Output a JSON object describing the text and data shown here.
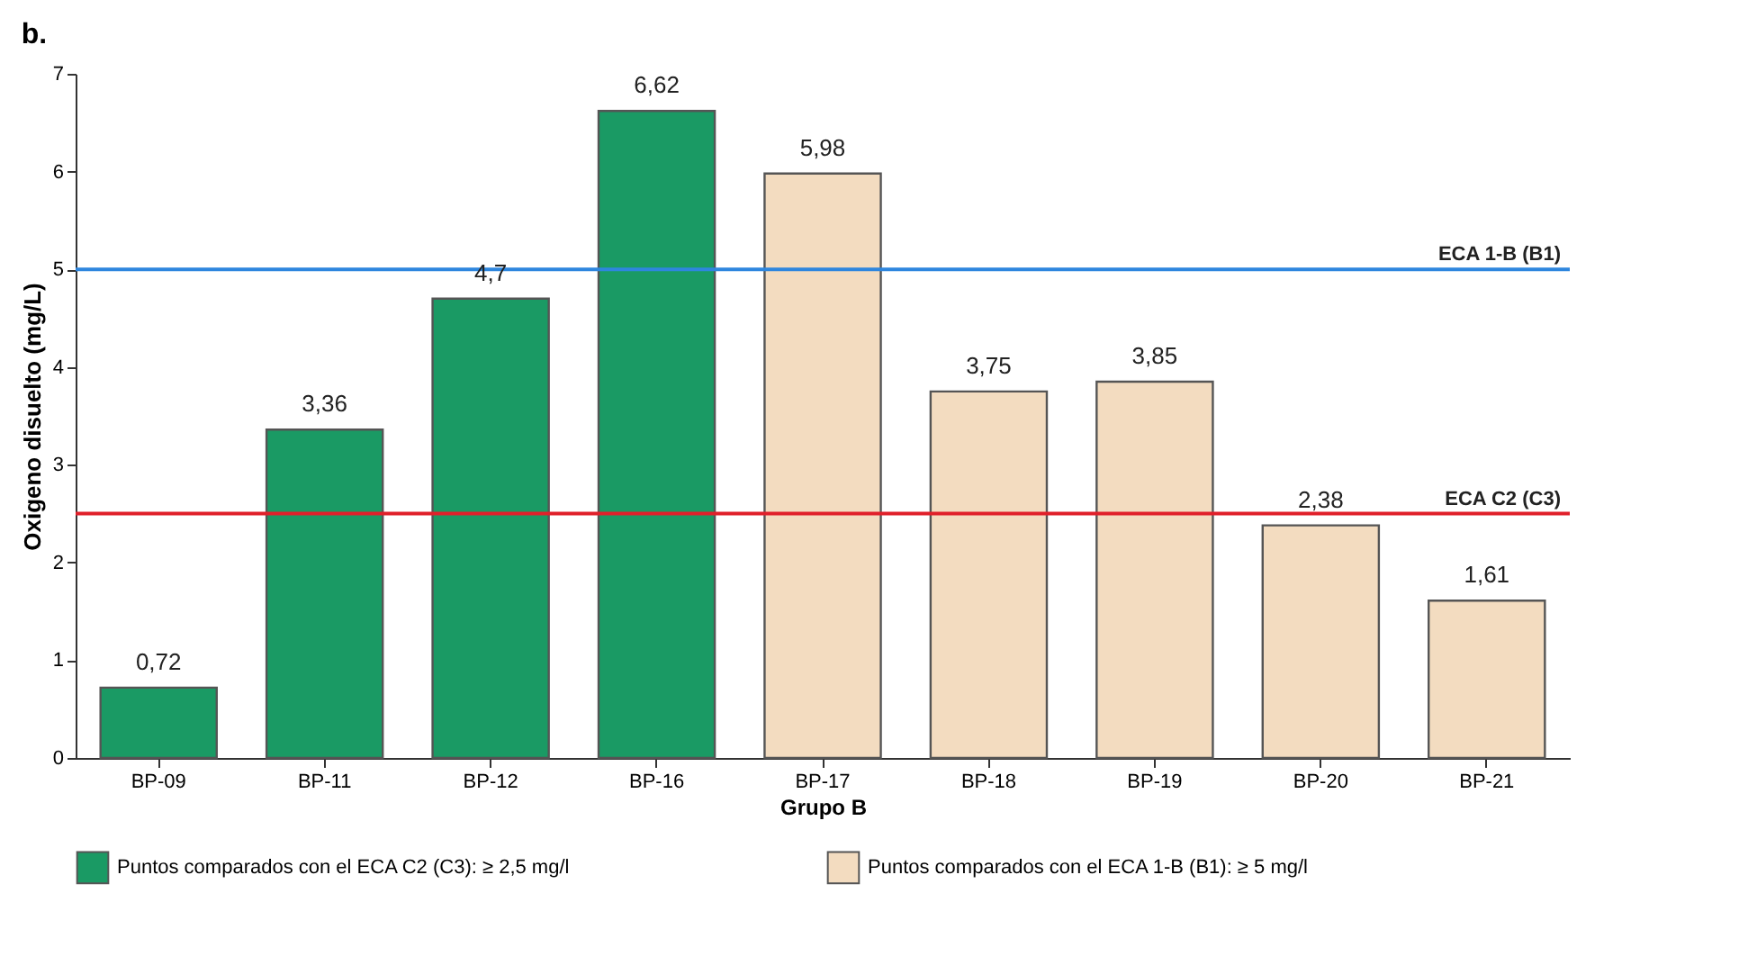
{
  "chart_data": {
    "type": "bar",
    "title": "b.",
    "xlabel": "Grupo B",
    "ylabel": "Oxigeno disuelto (mg/L)",
    "categories": [
      "BP-09",
      "BP-11",
      "BP-12",
      "BP-16",
      "BP-17",
      "BP-18",
      "BP-19",
      "BP-20",
      "BP-21"
    ],
    "series": [
      {
        "name": "Puntos comparados con el ECA C2 (C3): ≥ 2,5 mg/l",
        "color": "#1a9a64",
        "values": [
          0.72,
          3.36,
          4.7,
          6.62,
          null,
          null,
          null,
          null,
          null
        ],
        "value_labels": [
          "0,72",
          "3,36",
          "4,7",
          "6,62",
          null,
          null,
          null,
          null,
          null
        ]
      },
      {
        "name": "Puntos comparados con el ECA 1-B (B1): ≥ 5 mg/l",
        "color": "#f3dcc0",
        "values": [
          null,
          null,
          null,
          null,
          5.98,
          3.75,
          3.85,
          2.38,
          1.61
        ],
        "value_labels": [
          null,
          null,
          null,
          null,
          "5,98",
          "3,75",
          "3,85",
          "2,38",
          "1,61"
        ]
      }
    ],
    "ylim": [
      0,
      7
    ],
    "yticks": [
      0,
      1,
      2,
      3,
      4,
      5,
      6,
      7
    ],
    "ref_lines": [
      {
        "axis": "y",
        "value": 2.5,
        "label": "ECA C2 (C3)",
        "color": "#e0202a"
      },
      {
        "axis": "y",
        "value": 5,
        "label": "ECA 1-B (B1)",
        "color": "#2e86de"
      }
    ],
    "legend": "bottom"
  }
}
